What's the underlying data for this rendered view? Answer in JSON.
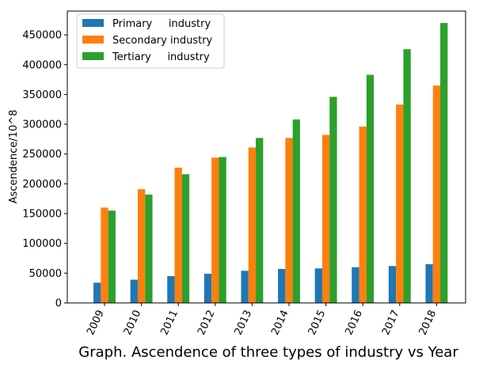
{
  "chart_data": {
    "type": "bar",
    "categories": [
      "2009",
      "2010",
      "2011",
      "2012",
      "2013",
      "2014",
      "2015",
      "2016",
      "2017",
      "2018"
    ],
    "series": [
      {
        "name": "Primary     industry",
        "color": "#1f77b4",
        "values": [
          34000,
          39000,
          45000,
          49000,
          54000,
          57000,
          58000,
          60000,
          62000,
          65000
        ]
      },
      {
        "name": "Secondary industry",
        "color": "#ff7f0e",
        "values": [
          160000,
          191000,
          227000,
          244000,
          261000,
          277000,
          282000,
          296000,
          333000,
          365000
        ]
      },
      {
        "name": "Tertiary     industry",
        "color": "#2ca02c",
        "values": [
          155000,
          182000,
          216000,
          245000,
          277000,
          308000,
          346000,
          383000,
          426000,
          470000
        ]
      }
    ],
    "xlabel": "Graph. Ascendence of three types of industry vs Year",
    "ylabel": "Ascendence/10^8",
    "ylim": [
      0,
      490000
    ],
    "yticks": [
      0,
      50000,
      100000,
      150000,
      200000,
      250000,
      300000,
      350000,
      400000,
      450000
    ],
    "grid": false,
    "legend": "top-left"
  }
}
